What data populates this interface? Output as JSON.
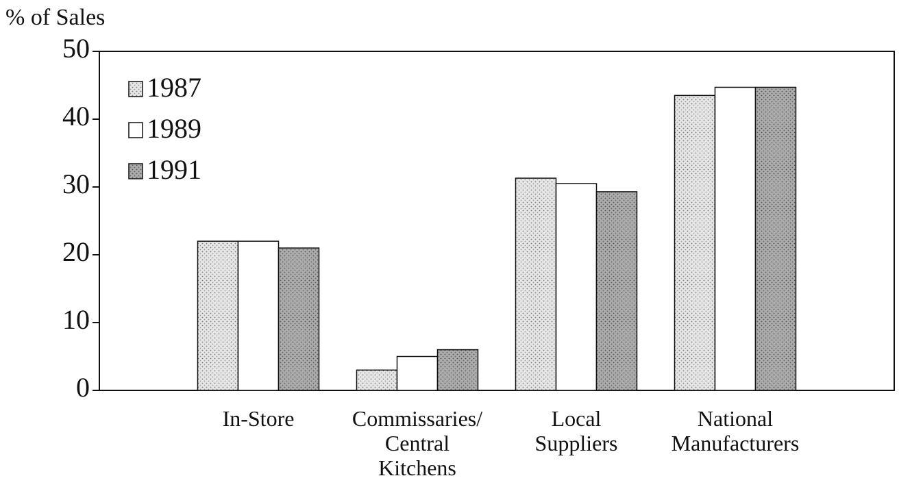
{
  "chart_data": {
    "type": "bar",
    "y_label": "% of Sales",
    "categories": [
      "In-Store",
      "Commissaries/\nCentral\nKitchens",
      "Local\nSuppliers",
      "National\nManufacturers"
    ],
    "series": [
      {
        "name": "1987",
        "color": "#e6e6e6",
        "values": [
          22,
          3,
          31.3,
          43.5
        ]
      },
      {
        "name": "1989",
        "color": "#ffffff",
        "values": [
          22,
          5,
          30.5,
          44.7
        ]
      },
      {
        "name": "1991",
        "color": "#ababab",
        "values": [
          21,
          6,
          29.3,
          44.7
        ]
      }
    ],
    "ylim": [
      0,
      50
    ],
    "yticks": [
      0,
      10,
      20,
      30,
      40,
      50
    ],
    "grid": false,
    "legend": "upper left"
  }
}
